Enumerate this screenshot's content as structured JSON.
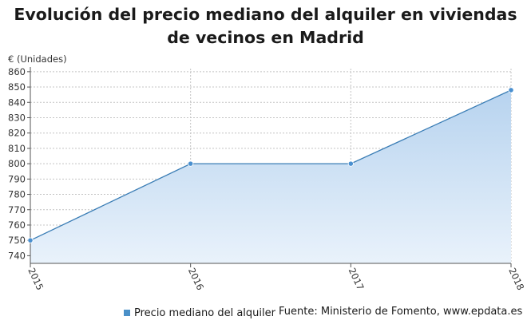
{
  "title_lines": [
    "Evolución del precio mediano del alquiler en viviendas",
    "de vecinos en Madrid"
  ],
  "colors": {
    "line": "#3a7db5",
    "marker": "#4a90d0",
    "area_top": "#b7d3ef",
    "area_bottom": "#e9f2fb",
    "legend_swatch": "#4a90c8"
  },
  "chart_data": {
    "type": "area",
    "ylabel": "€ (Unidades)",
    "x": [
      "2015",
      "2016",
      "2017",
      "2018"
    ],
    "series": [
      {
        "name": "Precio mediano del alquiler",
        "values": [
          750,
          800,
          800,
          848
        ]
      }
    ],
    "ylim": [
      735,
      862
    ],
    "yticks": [
      740,
      750,
      760,
      770,
      780,
      790,
      800,
      810,
      820,
      830,
      840,
      850,
      860
    ],
    "grid": true,
    "legend_position": "bottom-left"
  },
  "legend": {
    "label": "Precio mediano del alquiler"
  },
  "source": "Fuente: Ministerio de Fomento, www.epdata.es"
}
